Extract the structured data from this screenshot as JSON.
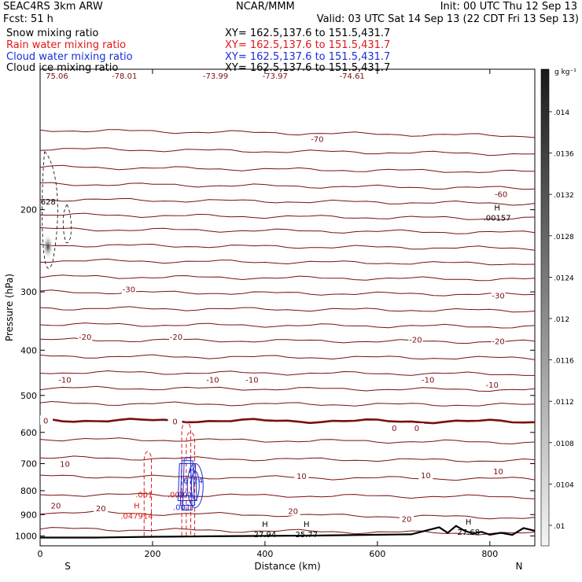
{
  "header": {
    "title_left": "SEAC4RS  3km ARW",
    "title_center": "NCAR/MMM",
    "init": "Init: 00 UTC Thu 12 Sep 13",
    "fcst": "Fcst:   51 h",
    "valid": "Valid: 03 UTC Sat 14 Sep 13 (22 CDT Fri 13 Sep 13)",
    "fields": [
      {
        "label": "Snow mixing ratio",
        "xy": "XY= 162.5,137.6 to 151.5,431.7",
        "color": "#000000"
      },
      {
        "label": "Rain water mixing ratio",
        "xy": "XY= 162.5,137.6 to 151.5,431.7",
        "color": "#e01818"
      },
      {
        "label": "Cloud water mixing ratio",
        "xy": "XY= 162.5,137.6 to 151.5,431.7",
        "color": "#1a2fd8"
      },
      {
        "label": "Cloud ice mixing ratio",
        "xy": "XY= 162.5,137.6 to 151.5,431.7",
        "color": "#000000"
      }
    ]
  },
  "chart_data": {
    "type": "cross-section contour",
    "xlabel": "Distance (km)",
    "ylabel": "Pressure (hPa)",
    "xlim": [
      0,
      880
    ],
    "ylim": [
      1050,
      100
    ],
    "y_scale": "log",
    "xticks": [
      0,
      200,
      400,
      600,
      800
    ],
    "yticks": [
      200,
      300,
      400,
      500,
      600,
      700,
      800,
      900,
      1000
    ],
    "end_labels": {
      "left": "S",
      "right": "N"
    },
    "colorbar": {
      "units": "g kg⁻¹",
      "ticks": [
        ".014",
        ".0136",
        ".0132",
        ".0128",
        ".0124",
        ".012",
        ".0116",
        ".0112",
        ".0108",
        ".0104",
        ".01"
      ]
    },
    "temperature_isotherms": [
      {
        "value": 0,
        "bold": true,
        "labels": [
          {
            "x": 10,
            "p": 565,
            "text": "0"
          },
          {
            "x": 240,
            "p": 568,
            "text": "0"
          },
          {
            "x": 630,
            "p": 587,
            "text": "0"
          },
          {
            "x": 670,
            "p": 587,
            "text": "0"
          }
        ]
      },
      {
        "value": -10,
        "labels": [
          {
            "x": 44,
            "p": 462,
            "text": "-10"
          },
          {
            "x": 307,
            "p": 462,
            "text": "-10"
          },
          {
            "x": 377,
            "p": 462,
            "text": "-10"
          },
          {
            "x": 690,
            "p": 462,
            "text": "-10"
          },
          {
            "x": 804,
            "p": 474,
            "text": "-10"
          }
        ]
      },
      {
        "value": -20,
        "labels": [
          {
            "x": 80,
            "p": 374,
            "text": "-20"
          },
          {
            "x": 242,
            "p": 374,
            "text": "-20"
          },
          {
            "x": 668,
            "p": 379,
            "text": "-20"
          },
          {
            "x": 815,
            "p": 382,
            "text": "-20"
          }
        ]
      },
      {
        "value": -30,
        "labels": [
          {
            "x": 158,
            "p": 296,
            "text": "-30"
          },
          {
            "x": 815,
            "p": 305,
            "text": "-30"
          }
        ]
      },
      {
        "value": -60,
        "labels": [
          {
            "x": 820,
            "p": 185,
            "text": "-60"
          }
        ]
      },
      {
        "value": -70,
        "labels": [
          {
            "x": 493,
            "p": 141,
            "text": "-70"
          }
        ]
      }
    ],
    "temperature_lines_pressure": [
      135,
      148,
      162,
      176,
      190,
      205,
      220,
      238,
      257,
      278,
      300,
      325,
      352,
      380,
      412,
      446,
      482,
      520,
      565,
      620,
      680,
      745,
      815,
      890,
      965
    ],
    "warm_isotherms": [
      {
        "value": 10,
        "labels": [
          {
            "x": 44,
            "p": 700,
            "text": "10"
          },
          {
            "x": 465,
            "p": 743,
            "text": "10"
          },
          {
            "x": 686,
            "p": 741,
            "text": "10"
          },
          {
            "x": 815,
            "p": 726,
            "text": "10"
          }
        ]
      },
      {
        "value": 20,
        "labels": [
          {
            "x": 28,
            "p": 860,
            "text": "20"
          },
          {
            "x": 108,
            "p": 871,
            "text": "20"
          },
          {
            "x": 450,
            "p": 884,
            "text": "20"
          },
          {
            "x": 652,
            "p": 918,
            "text": "20"
          }
        ]
      }
    ],
    "top_labels": [
      {
        "x": 30,
        "text": "75.06"
      },
      {
        "x": 150,
        "text": "-78.01"
      },
      {
        "x": 312,
        "text": "-73.99"
      },
      {
        "x": 418,
        "text": "-73.97"
      },
      {
        "x": 555,
        "text": "-74.61"
      }
    ],
    "extrema": [
      {
        "x": 10,
        "p": 192,
        "text": "3628"
      },
      {
        "x": 813,
        "p": 208,
        "text": ".00157",
        "marker": "H"
      },
      {
        "x": 172,
        "p": 905,
        "text": ".047914",
        "marker": "H",
        "color": "#e01818"
      },
      {
        "x": 270,
        "p": 760,
        "text": ".6724",
        "marker": "H",
        "color": "#1a2fd8"
      },
      {
        "x": 242,
        "p": 815,
        "text": ".001",
        "color": "#e01818"
      },
      {
        "x": 256,
        "p": 815,
        "text": ".001",
        "color": "#1a2fd8"
      },
      {
        "x": 252,
        "p": 866,
        "text": ".001",
        "color": "#1a2fd8"
      },
      {
        "x": 185,
        "p": 815,
        "text": ".001",
        "color": "#e01818"
      },
      {
        "x": 400,
        "p": 990,
        "text": "27.94",
        "marker": "H"
      },
      {
        "x": 474,
        "p": 990,
        "text": "25.77",
        "marker": "H"
      },
      {
        "x": 762,
        "p": 980,
        "text": "27.68",
        "marker": "H"
      }
    ],
    "rain_water": {
      "columns_x": [
        190,
        258,
        262
      ]
    },
    "cloud_water": {
      "core_x": 262,
      "p_range": [
        680,
        880
      ]
    },
    "terrain": {
      "x": [
        0,
        100,
        200,
        300,
        400,
        500,
        600,
        660,
        700,
        710,
        725,
        740,
        755,
        770,
        785,
        800,
        820,
        840,
        860,
        880
      ],
      "p": [
        1008,
        1008,
        1004,
        1002,
        1000,
        998,
        994,
        992,
        965,
        958,
        985,
        952,
        975,
        988,
        980,
        994,
        985,
        995,
        962,
        975
      ]
    }
  }
}
